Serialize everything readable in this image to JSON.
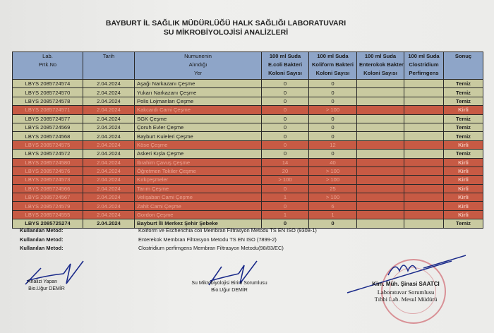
{
  "title_line1": "BAYBURT İL SAĞLIK  MÜDÜRLÜĞÜ HALK SAĞLIĞI LABORATUVARI",
  "title_line2": "SU MİKROBİYOLOJİSİ ANALİZLERİ",
  "colors": {
    "header": "#8ea5c8",
    "clean_row": "#c9caa0",
    "dirty_row": "#c75a44"
  },
  "table": {
    "headers": [
      [
        "Lab.",
        "Prtk.No"
      ],
      [
        "Tarih"
      ],
      [
        "Numunenin",
        "Alındığı",
        "Yer"
      ],
      [
        "100 ml Suda",
        "E.coli Bakteri",
        "Koloni Sayısı"
      ],
      [
        "100 ml Suda",
        "Koliform Bakteri",
        "Koloni Sayısı"
      ],
      [
        "100 ml  Suda",
        "Enterokok Bakteri",
        "Koloni Sayısı"
      ],
      [
        "100 ml Suda",
        "Clostridium",
        "Perfirngens"
      ],
      [
        "Sonuç"
      ]
    ],
    "rows": [
      {
        "no": "LBYS 2085724574",
        "date": "2.04.2024",
        "place": "Aşağı Narkazanı Çeşme",
        "ecoli": "0",
        "koliform": "0",
        "enterokok": "",
        "clostridium": "",
        "result": "Temiz",
        "status": "clean"
      },
      {
        "no": "LBYS 2085724570",
        "date": "2.04.2024",
        "place": "Yukarı Narkazanı Çeşme",
        "ecoli": "0",
        "koliform": "0",
        "enterokok": "",
        "clostridium": "",
        "result": "Temiz",
        "status": "clean"
      },
      {
        "no": "LBYS 2085724578",
        "date": "2.04.2024",
        "place": "Polis Lojmanları Çeşme",
        "ecoli": "0",
        "koliform": "0",
        "enterokok": "",
        "clostridium": "",
        "result": "Temiz",
        "status": "clean"
      },
      {
        "no": "LBYS 2085724571",
        "date": "2.04.2024",
        "place": "Kakcardı Cami Çeşme",
        "ecoli": "0",
        "koliform": "> 100",
        "enterokok": "",
        "clostridium": "",
        "result": "Kirli",
        "status": "dirty"
      },
      {
        "no": "LBYS 2085724577",
        "date": "2.04.2024",
        "place": "SGK Çeşme",
        "ecoli": "0",
        "koliform": "0",
        "enterokok": "",
        "clostridium": "",
        "result": "Temiz",
        "status": "clean"
      },
      {
        "no": "LBYS 2085724569",
        "date": "2.04.2024",
        "place": "Çoruh Evler Çeşme",
        "ecoli": "0",
        "koliform": "0",
        "enterokok": "",
        "clostridium": "",
        "result": "Temiz",
        "status": "clean"
      },
      {
        "no": "LBYS 2085724568",
        "date": "2.04.2024",
        "place": "Bayburt Kuleleri Çeşme",
        "ecoli": "0",
        "koliform": "0",
        "enterokok": "",
        "clostridium": "",
        "result": "Temiz",
        "status": "clean"
      },
      {
        "no": "LBYS 2085724575",
        "date": "2.04.2024",
        "place": "Köse Çeşme",
        "ecoli": "0",
        "koliform": "12",
        "enterokok": "",
        "clostridium": "",
        "result": "Kirli",
        "status": "dirty"
      },
      {
        "no": "LBYS 2085724572",
        "date": "2.04.2024",
        "place": "Askeri Kışla Çeşme",
        "ecoli": "0",
        "koliform": "0",
        "enterokok": "",
        "clostridium": "",
        "result": "Temiz",
        "status": "clean"
      },
      {
        "no": "LBYS 2085724580",
        "date": "2.04.2024",
        "place": "İbrahim Çavuş Çeşme",
        "ecoli": "14",
        "koliform": "40",
        "enterokok": "",
        "clostridium": "",
        "result": "Kirli",
        "status": "dirty"
      },
      {
        "no": "LBYS 2085724576",
        "date": "2.04.2024",
        "place": "Öğretmen Tokiler Çeşme",
        "ecoli": "20",
        "koliform": "> 100",
        "enterokok": "",
        "clostridium": "",
        "result": "Kirli",
        "status": "dirty"
      },
      {
        "no": "LBYS 2085724573",
        "date": "2.04.2024",
        "place": "Kırkçeşmeler",
        "ecoli": "> 100",
        "koliform": "> 100",
        "enterokok": "",
        "clostridium": "",
        "result": "Kirli",
        "status": "dirty"
      },
      {
        "no": "LBYS 2085724566",
        "date": "2.04.2024",
        "place": "Tarım Çeşme",
        "ecoli": "0",
        "koliform": "25",
        "enterokok": "",
        "clostridium": "",
        "result": "Kirli",
        "status": "dirty"
      },
      {
        "no": "LBYS 2085724567",
        "date": "2.04.2024",
        "place": "Velişaban Cami Çeşme",
        "ecoli": "1",
        "koliform": "> 100",
        "enterokok": "",
        "clostridium": "",
        "result": "Kirli",
        "status": "dirty"
      },
      {
        "no": "LBYS 2085724579",
        "date": "2.04.2024",
        "place": "Zahit Cami Çeşme",
        "ecoli": "0",
        "koliform": "6",
        "enterokok": "",
        "clostridium": "",
        "result": "Kirli",
        "status": "dirty"
      },
      {
        "no": "LBYS 2085724555",
        "date": "2.04.2024",
        "place": "Gordon Çeşme",
        "ecoli": "1",
        "koliform": "1",
        "enterokok": "",
        "clostridium": "",
        "result": "Kirli",
        "status": "dirty"
      },
      {
        "no": "LBYS 2085725274",
        "date": "2.04.2024",
        "place": "Bayburt İli Merkez Şehir Şebeke",
        "ecoli": "0",
        "koliform": "0",
        "enterokok": "",
        "clostridium": "",
        "result": "Temiz",
        "status": "clean",
        "bold": true
      }
    ]
  },
  "methods": [
    {
      "label": "Kullanılan Metod:",
      "value": "Koliform ve Escherichia coli Membran Filtrasyon Metodu TS EN ISO  (9308-1)"
    },
    {
      "label": "Kullanılan Metod:",
      "value": "Enterekok Membran Filtrasyon Metodu TS EN ISO  (7899-2)"
    },
    {
      "label": "Kullanılan Metod:",
      "value": "Clostridium perfirngens Membran Filtrasyon Metodu(98/83/EC)"
    }
  ],
  "signatures": {
    "analyst": {
      "role": "Analizi Yapan",
      "name": "Bio.Uğur DEMİR"
    },
    "unit_head": {
      "role": "Su Mikrobiyolojisi Birim Sorumlusu",
      "name": "Bio.Uğur DEMİR"
    },
    "manager": {
      "name": "Kim. Müh. Şinasi SAATCI",
      "role1": "Laboratuvar Sorumlusu",
      "role2": "Tıbbi Lab. Mesul Müdürü"
    }
  }
}
